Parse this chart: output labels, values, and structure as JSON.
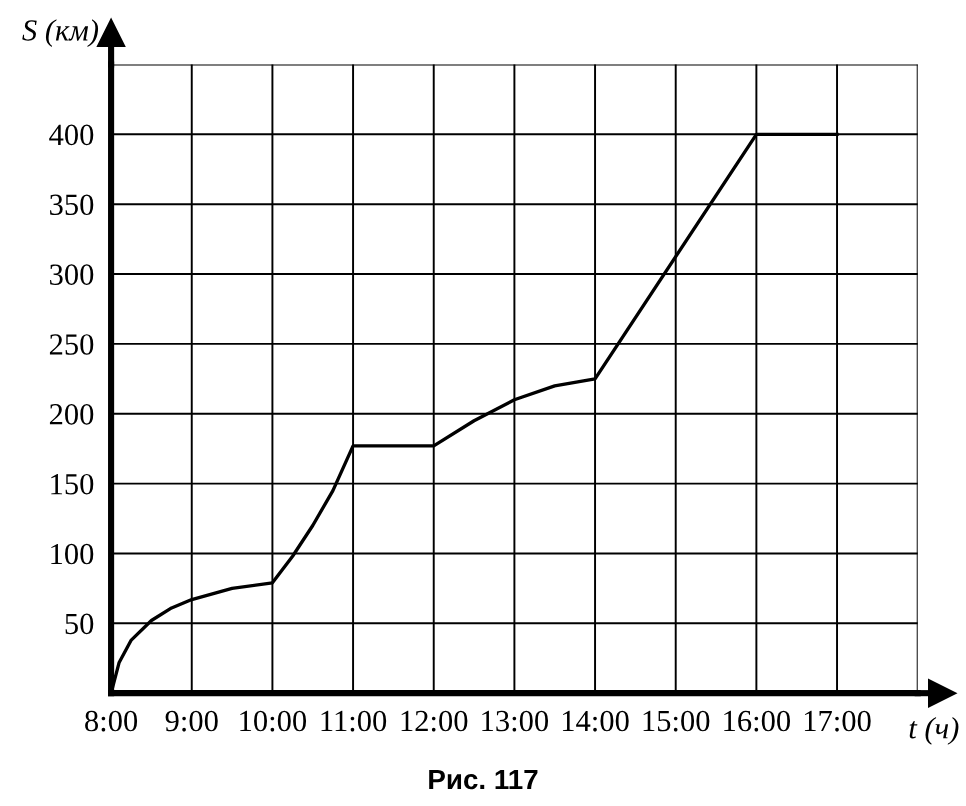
{
  "chart_data": {
    "type": "line",
    "xlabel": "t (ч)",
    "ylabel": "S (км)",
    "annotations": [
      "Рис. 117"
    ],
    "x": [
      8,
      8.1,
      8.25,
      8.5,
      8.75,
      9,
      9.5,
      10,
      10.25,
      10.5,
      10.75,
      11,
      12,
      12.5,
      13,
      13.5,
      14,
      16,
      17
    ],
    "series": [
      {
        "color": "#000000",
        "values": [
          0,
          22,
          38,
          52,
          61,
          67,
          75,
          79,
          98,
          120,
          145,
          177,
          177,
          195,
          210,
          220,
          225,
          400,
          400
        ]
      }
    ],
    "xlim": [
      8,
      18
    ],
    "ylim": [
      0,
      450
    ],
    "xticks": [
      {
        "value": 8,
        "label": "8:00"
      },
      {
        "value": 9,
        "label": "9:00"
      },
      {
        "value": 10,
        "label": "10:00"
      },
      {
        "value": 11,
        "label": "11:00"
      },
      {
        "value": 12,
        "label": "12:00"
      },
      {
        "value": 13,
        "label": "13:00"
      },
      {
        "value": 14,
        "label": "14:00"
      },
      {
        "value": 15,
        "label": "15:00"
      },
      {
        "value": 16,
        "label": "16:00"
      },
      {
        "value": 17,
        "label": "17:00"
      },
      {
        "value": 18,
        "label": null
      }
    ],
    "yticks": [
      {
        "value": 0,
        "label": null
      },
      50,
      100,
      150,
      200,
      250,
      300,
      350,
      400,
      {
        "value": 450,
        "label": null
      }
    ],
    "grid": true,
    "marker": "none",
    "line_style": "solid"
  }
}
